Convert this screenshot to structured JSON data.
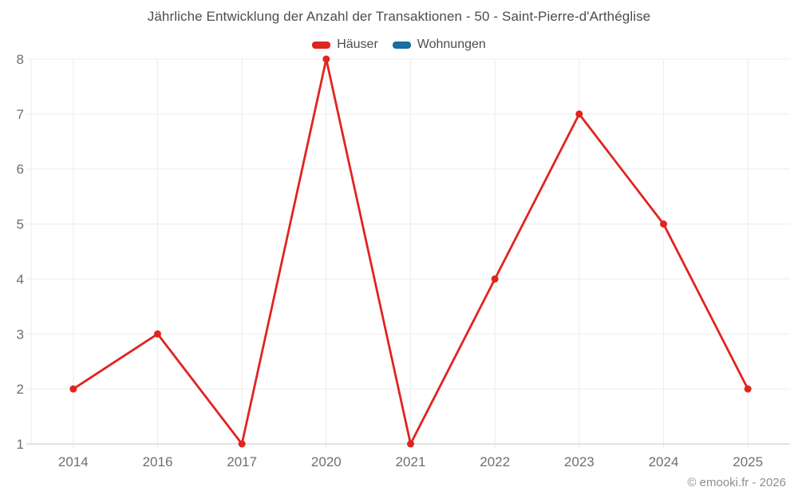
{
  "header": {
    "title": "Jährliche Entwicklung der Anzahl der Transaktionen - 50 - Saint-Pierre-d'Arthéglise"
  },
  "legend": {
    "items": [
      {
        "label": "Häuser",
        "color": "#e02420"
      },
      {
        "label": "Wohnungen",
        "color": "#186e9d"
      }
    ]
  },
  "footer": {
    "copyright": "© emooki.fr - 2026"
  },
  "chart_data": {
    "type": "line",
    "title": "Jährliche Entwicklung der Anzahl der Transaktionen - 50 - Saint-Pierre-d'Arthéglise",
    "categories": [
      "2014",
      "2016",
      "2017",
      "2020",
      "2021",
      "2022",
      "2023",
      "2024",
      "2025"
    ],
    "series": [
      {
        "name": "Häuser",
        "color": "#e02420",
        "values": [
          2,
          3,
          1,
          8,
          1,
          4,
          7,
          5,
          2
        ]
      },
      {
        "name": "Wohnungen",
        "color": "#186e9d",
        "values": []
      }
    ],
    "xlabel": "",
    "ylabel": "",
    "ylim": [
      1,
      8
    ],
    "yticks": [
      1,
      2,
      3,
      4,
      5,
      6,
      7,
      8
    ],
    "grid": true,
    "legend_position": "top",
    "point_style": "filled-circle",
    "colors": {
      "grid": "#ececec",
      "axis": "#d9d9d9",
      "tick_text": "#6f6f6f"
    }
  }
}
